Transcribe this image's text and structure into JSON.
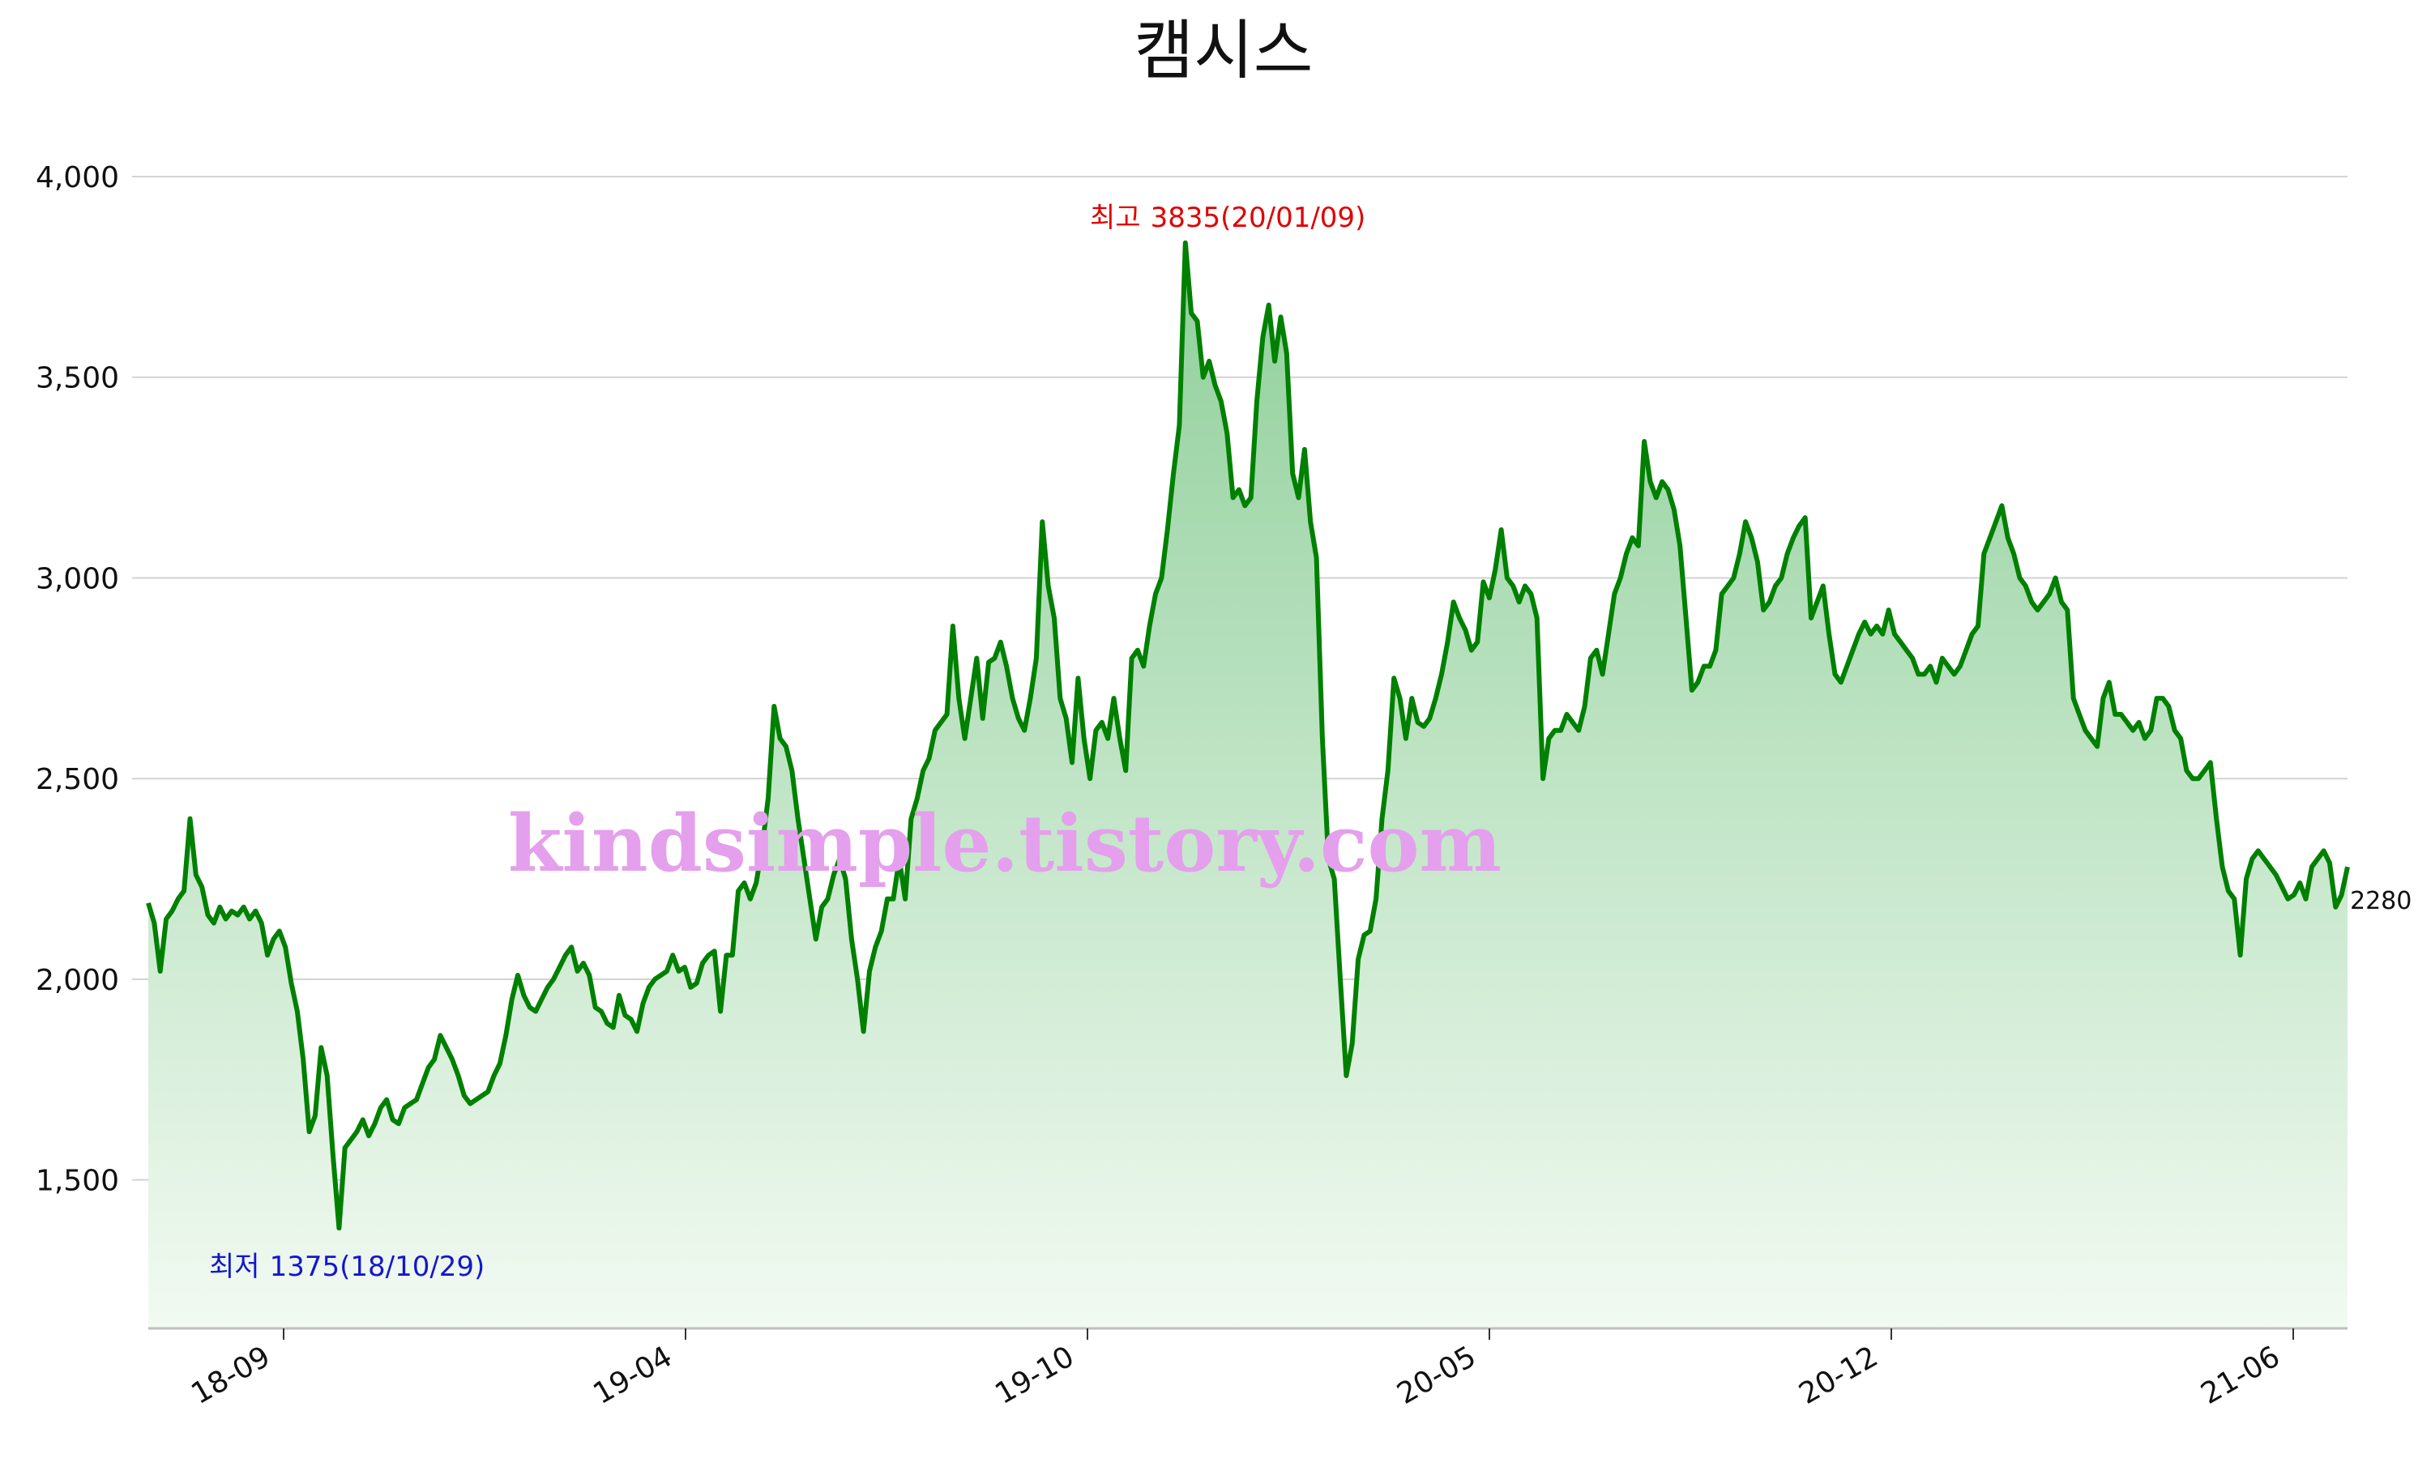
{
  "chart_data": {
    "type": "area",
    "title": "캠시스",
    "y_ticks": [
      1500,
      2000,
      2500,
      3000,
      3500,
      4000
    ],
    "y_tick_labels": [
      "1,500",
      "2,000",
      "2,500",
      "3,000",
      "3,500",
      "4,000"
    ],
    "ylim": [
      1130,
      4000
    ],
    "x_ticks": [
      "18-09",
      "19-04",
      "19-10",
      "20-05",
      "20-12",
      "21-06"
    ],
    "grid": true,
    "legend": "none",
    "colors": {
      "line": "#008000",
      "fill_top": "#8fcf9a",
      "fill_bottom": "#f2faf2",
      "high": "#e00000",
      "low": "#1515d0",
      "watermark": "#e4a0ec"
    },
    "series": [
      {
        "values": [
          2190,
          2140,
          2020,
          2150,
          2170,
          2200,
          2220,
          2400,
          2260,
          2230,
          2160,
          2140,
          2180,
          2150,
          2170,
          2160,
          2180,
          2150,
          2170,
          2140,
          2060,
          2100,
          2120,
          2080,
          1990,
          1920,
          1800,
          1620,
          1660,
          1830,
          1760,
          1560,
          1380,
          1580,
          1600,
          1620,
          1650,
          1610,
          1640,
          1680,
          1700,
          1650,
          1640,
          1680,
          1690,
          1700,
          1740,
          1780,
          1800,
          1860,
          1830,
          1800,
          1760,
          1710,
          1690,
          1700,
          1710,
          1720,
          1760,
          1790,
          1860,
          1950,
          2010,
          1960,
          1930,
          1920,
          1950,
          1980,
          2000,
          2030,
          2060,
          2080,
          2020,
          2040,
          2010,
          1930,
          1920,
          1890,
          1880,
          1960,
          1910,
          1900,
          1870,
          1940,
          1980,
          2000,
          2010,
          2020,
          2060,
          2020,
          2030,
          1980,
          1990,
          2040,
          2060,
          2070,
          1920,
          2060,
          2060,
          2220,
          2240,
          2200,
          2240,
          2330,
          2450,
          2680,
          2600,
          2580,
          2520,
          2400,
          2300,
          2200,
          2100,
          2180,
          2200,
          2260,
          2300,
          2250,
          2100,
          2000,
          1870,
          2020,
          2080,
          2120,
          2200,
          2200,
          2300,
          2200,
          2400,
          2450,
          2520,
          2550,
          2620,
          2640,
          2660,
          2880,
          2700,
          2600,
          2700,
          2800,
          2650,
          2790,
          2800,
          2840,
          2780,
          2700,
          2650,
          2620,
          2700,
          2800,
          3140,
          2980,
          2900,
          2700,
          2650,
          2540,
          2750,
          2600,
          2500,
          2620,
          2640,
          2600,
          2700,
          2600,
          2520,
          2800,
          2820,
          2780,
          2880,
          2960,
          3000,
          3120,
          3260,
          3380,
          3835,
          3660,
          3640,
          3500,
          3540,
          3480,
          3440,
          3360,
          3200,
          3220,
          3180,
          3200,
          3440,
          3600,
          3680,
          3540,
          3650,
          3560,
          3260,
          3200,
          3320,
          3140,
          3050,
          2600,
          2300,
          2250,
          2000,
          1760,
          1840,
          2050,
          2110,
          2120,
          2200,
          2400,
          2520,
          2750,
          2700,
          2600,
          2700,
          2640,
          2630,
          2650,
          2700,
          2760,
          2840,
          2940,
          2900,
          2870,
          2820,
          2840,
          2990,
          2950,
          3020,
          3120,
          3000,
          2980,
          2940,
          2980,
          2960,
          2900,
          2500,
          2600,
          2620,
          2620,
          2660,
          2640,
          2620,
          2680,
          2800,
          2820,
          2760,
          2860,
          2960,
          3000,
          3060,
          3100,
          3080,
          3340,
          3240,
          3200,
          3240,
          3220,
          3170,
          3080,
          2900,
          2720,
          2740,
          2780,
          2780,
          2820,
          2960,
          2980,
          3000,
          3060,
          3140,
          3100,
          3040,
          2920,
          2940,
          2980,
          3000,
          3060,
          3100,
          3130,
          3150,
          2900,
          2940,
          2980,
          2860,
          2760,
          2740,
          2780,
          2820,
          2860,
          2890,
          2860,
          2880,
          2860,
          2920,
          2860,
          2840,
          2820,
          2800,
          2760,
          2760,
          2780,
          2740,
          2800,
          2780,
          2760,
          2780,
          2820,
          2860,
          2880,
          3060,
          3100,
          3140,
          3180,
          3100,
          3060,
          3000,
          2980,
          2940,
          2920,
          2940,
          2960,
          3000,
          2940,
          2920,
          2700,
          2660,
          2620,
          2600,
          2580,
          2700,
          2740,
          2660,
          2660,
          2640,
          2620,
          2640,
          2600,
          2620,
          2700,
          2700,
          2680,
          2620,
          2600,
          2520,
          2500,
          2500,
          2520,
          2540,
          2400,
          2280,
          2220,
          2200,
          2060,
          2250,
          2300,
          2320,
          2300,
          2280,
          2260,
          2230,
          2200,
          2210,
          2240,
          2200,
          2280,
          2300,
          2320,
          2290,
          2180,
          2210,
          2280
        ]
      }
    ],
    "annotations": {
      "high": {
        "label": "최고",
        "value": 3835,
        "date": "20/01/09",
        "text": "3835(20/01/09)"
      },
      "low": {
        "label": "최저",
        "value": 1375,
        "date": "18/10/29",
        "text": "1375(18/10/29)"
      },
      "last": {
        "value": 2280,
        "text": "2280"
      }
    },
    "watermark": "kindsimple.tistory.com"
  }
}
